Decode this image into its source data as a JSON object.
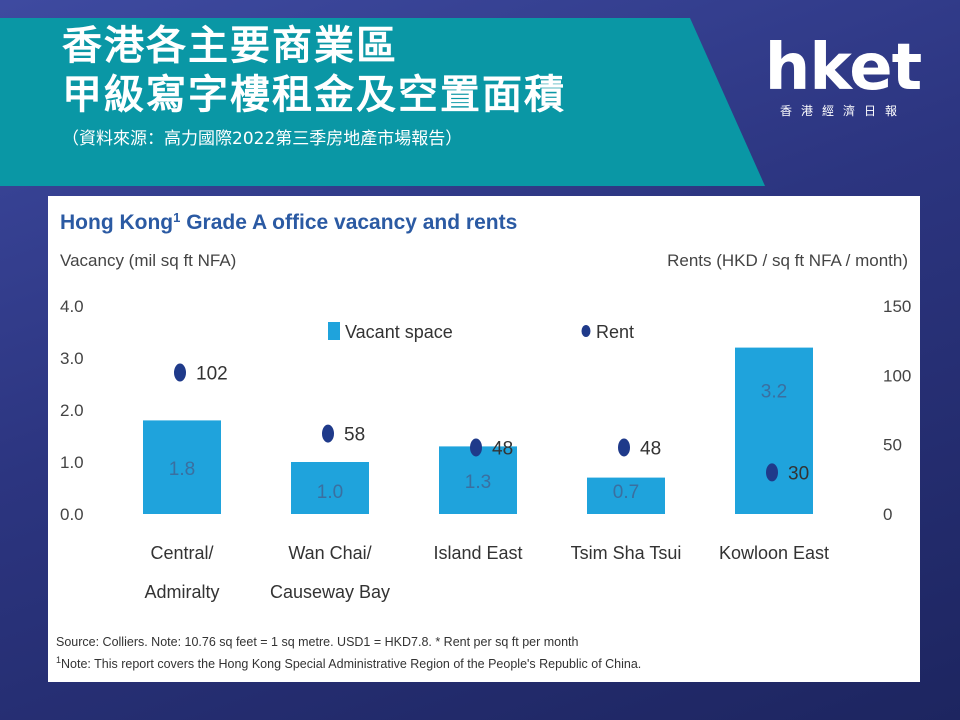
{
  "slide": {
    "title_line1": "香港各主要商業區",
    "title_line2": "甲級寫字樓租金及空置面積",
    "source": "（資料來源：高力國際2022第三季房地產市場報告）"
  },
  "logo": {
    "word": "hket",
    "subtitle": "香港經濟日報"
  },
  "colors": {
    "banner": "#0a97a5",
    "bar": "#1fa3dc",
    "rent_dot": "#1f3a8a",
    "title": "#2b5aa3"
  },
  "chart_data": {
    "type": "bar",
    "title": "Hong Kong",
    "title_superscript": "1",
    "title_suffix": " Grade A office vacancy and rents",
    "ylabel_left": "Vacancy (mil sq ft NFA)",
    "ylabel_right": "Rents (HKD / sq ft NFA / month)",
    "categories": [
      {
        "line1": "Central/",
        "line2": "Admiralty"
      },
      {
        "line1": "Wan Chai/",
        "line2": "Causeway Bay"
      },
      {
        "line1": "Island East",
        "line2": ""
      },
      {
        "line1": "Tsim Sha Tsui",
        "line2": ""
      },
      {
        "line1": "Kowloon East",
        "line2": ""
      }
    ],
    "series": [
      {
        "name": "Vacant space",
        "axis": "left",
        "kind": "bar",
        "values": [
          1.8,
          1.0,
          1.3,
          0.7,
          3.2
        ]
      },
      {
        "name": "Rent",
        "axis": "right",
        "kind": "dot",
        "values": [
          102,
          58,
          48,
          48,
          30
        ]
      }
    ],
    "y_left": {
      "min": 0,
      "max": 4,
      "ticks": [
        "0.0",
        "1.0",
        "2.0",
        "3.0",
        "4.0"
      ]
    },
    "y_right": {
      "min": 0,
      "max": 150,
      "ticks": [
        "0",
        "50",
        "100",
        "150"
      ]
    },
    "legend_position": "top-center",
    "notes": [
      "Source: Colliers. Note: 10.76 sq feet = 1 sq metre. USD1 = HKD7.8. * Rent per sq ft per month",
      "Note: This report covers the Hong Kong Special Administrative Region of the People's Republic of China."
    ],
    "notes_superscript": "1"
  }
}
